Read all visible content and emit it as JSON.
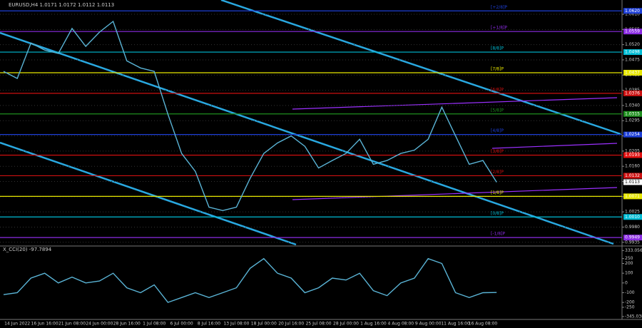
{
  "chart_data": [
    {
      "type": "line",
      "title": "EURUSD,H4  1.0171 1.0172 1.0112 1.0113",
      "categories": [
        null,
        "14 Jun 2022",
        null,
        "16 Jun 16:00",
        null,
        "21 Jun 08:00",
        null,
        "24 Jun 00:00",
        null,
        "28 Jun 16:00",
        null,
        "1 Jul 08:00",
        null,
        "6 Jul 00:00",
        null,
        "8 Jul 16:00",
        null,
        "13 Jul 08:00",
        null,
        "18 Jul 00:00",
        null,
        "20 Jul 16:00",
        null,
        "25 Jul 08:00",
        null,
        "28 Jul 00:00",
        null,
        "1 Aug 16:00",
        null,
        "4 Aug 08:00",
        null,
        "9 Aug 00:00",
        null,
        "11 Aug 16:00",
        null,
        "16 Aug 08:00",
        null
      ],
      "series": [
        {
          "color": "#5ab4d6",
          "values": [
            1.0441,
            1.042,
            1.0525,
            1.0504,
            1.0494,
            1.0568,
            1.0515,
            1.0557,
            1.0589,
            1.0472,
            1.0451,
            1.0441,
            1.0314,
            1.0198,
            1.0145,
            1.0039,
            1.0029,
            1.0039,
            1.0124,
            1.0198,
            1.0229,
            1.025,
            1.0219,
            1.0155,
            1.0177,
            1.0198,
            1.024,
            1.0166,
            1.0177,
            1.0198,
            1.0208,
            1.024,
            1.0335,
            1.025,
            1.0166,
            1.0177,
            1.0113
          ]
        }
      ],
      "ylim": [
        0.9924,
        1.0648
      ],
      "yticks": [
        {
          "value": 1.061,
          "label": "1.0610"
        },
        {
          "value": 1.0565,
          "label": "1.0565"
        },
        {
          "value": 1.052,
          "label": "1.0520"
        },
        {
          "value": 1.0475,
          "label": "1.0475"
        },
        {
          "value": 1.043,
          "label": "1.0430"
        },
        {
          "value": 1.0385,
          "label": "1.0385"
        },
        {
          "value": 1.034,
          "label": "1.0340"
        },
        {
          "value": 1.0295,
          "label": "1.0295"
        },
        {
          "value": 1.025,
          "label": "1.0250"
        },
        {
          "value": 1.0205,
          "label": "1.0205"
        },
        {
          "value": 1.016,
          "label": "1.0160"
        },
        {
          "value": 1.0115,
          "label": "1.0115"
        },
        {
          "value": 1.007,
          "label": "1.0070"
        },
        {
          "value": 1.0025,
          "label": "1.0025"
        },
        {
          "value": 0.998,
          "label": "0.9980"
        },
        {
          "value": 0.9935,
          "label": "0.9935"
        }
      ],
      "grid": true,
      "levels": [
        {
          "name": "[+2/8]P",
          "value": 1.062,
          "label": "1.0620",
          "color": "#1e3fd6"
        },
        {
          "name": "[+1/8]P",
          "value": 1.0559,
          "label": "1.0559",
          "color": "#8a2be2"
        },
        {
          "name": "[8/8]P",
          "value": 1.0498,
          "label": "1.0498",
          "color": "#00bcd4"
        },
        {
          "name": "[7/8]P",
          "value": 1.0437,
          "label": "1.0437",
          "color": "#e6e600"
        },
        {
          "name": "[6/8]P",
          "value": 1.0376,
          "label": "1.0376",
          "color": "#cc1111"
        },
        {
          "name": "[5/8]P",
          "value": 1.0315,
          "label": "1.0315",
          "color": "#1f8f1f"
        },
        {
          "name": "[4/8]P",
          "value": 1.0254,
          "label": "1.0254",
          "color": "#1e3fd6"
        },
        {
          "name": "[3/8]P",
          "value": 1.0193,
          "label": "1.0193",
          "color": "#e01010"
        },
        {
          "name": "[2/8]P",
          "value": 1.0132,
          "label": "1.0132",
          "color": "#cc1111"
        },
        {
          "name": "[1/8]P",
          "value": 1.0071,
          "label": "1.0071",
          "color": "#e6e600"
        },
        {
          "name": "[0/8]P",
          "value": 1.001,
          "label": "1.0010",
          "color": "#00bcd4"
        },
        {
          "name": "[-1/8]P",
          "value": 0.9949,
          "label": "0.9949",
          "color": "#8a2be2"
        }
      ],
      "last_price": {
        "value": 1.0113,
        "label": "1.0113"
      }
    },
    {
      "type": "line",
      "title": "X_CCI(20) -97.7894",
      "series": [
        {
          "color": "#5ab4d6",
          "values": [
            -120,
            -100,
            50,
            100,
            0,
            60,
            0,
            20,
            100,
            -50,
            -100,
            -20,
            -200,
            -150,
            -100,
            -150,
            -100,
            -50,
            150,
            250,
            100,
            50,
            -100,
            -50,
            50,
            30,
            100,
            -80,
            -130,
            0,
            50,
            250,
            200,
            -100,
            -150,
            -100,
            -97.7894
          ]
        }
      ],
      "ylim": [
        -360,
        350
      ],
      "yticks": [
        333.0565,
        250,
        200,
        100,
        0,
        -100,
        -200,
        -250,
        -345.038
      ]
    }
  ]
}
